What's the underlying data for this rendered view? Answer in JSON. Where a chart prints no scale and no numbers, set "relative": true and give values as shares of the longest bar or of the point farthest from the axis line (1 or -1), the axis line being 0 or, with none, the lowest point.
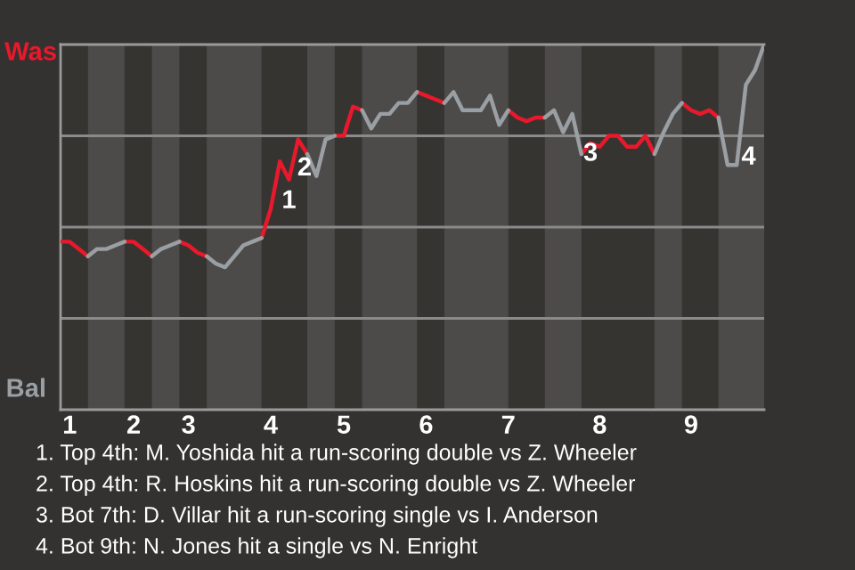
{
  "chart_data": {
    "type": "line",
    "relative": true,
    "categories": [
      null,
      "1",
      null,
      null,
      null,
      null,
      null,
      null,
      "2",
      null,
      null,
      null,
      null,
      null,
      "3",
      null,
      null,
      null,
      null,
      null,
      null,
      null,
      null,
      "4",
      null,
      null,
      null,
      null,
      null,
      null,
      null,
      "5",
      null,
      null,
      null,
      null,
      null,
      null,
      null,
      null,
      "6",
      null,
      null,
      null,
      null,
      null,
      null,
      null,
      null,
      "7",
      null,
      null,
      null,
      null,
      null,
      null,
      null,
      null,
      null,
      "8",
      null,
      null,
      null,
      null,
      null,
      null,
      null,
      null,
      null,
      "9",
      null,
      null,
      null,
      null,
      null,
      null,
      null,
      null
    ],
    "marker": "none",
    "line_style": "solid",
    "series": [
      {
        "color": "#e8192c",
        "values": [
          0.46,
          0.46,
          0.44,
          0.42,
          null,
          null,
          null,
          0.46,
          0.46,
          0.44,
          0.42,
          null,
          null,
          0.46,
          0.45,
          0.43,
          0.42,
          null,
          null,
          null,
          null,
          null,
          0.47,
          0.55,
          0.68,
          0.63,
          0.74,
          0.7,
          null,
          null,
          0.75,
          0.75,
          0.83,
          0.82,
          null,
          null,
          null,
          null,
          null,
          0.87,
          0.86,
          0.85,
          0.84,
          null,
          null,
          null,
          null,
          null,
          null,
          0.82,
          0.8,
          0.79,
          0.8,
          0.8,
          null,
          null,
          null,
          0.7,
          0.73,
          0.72,
          0.75,
          0.75,
          0.72,
          0.72,
          0.75,
          0.7,
          null,
          null,
          0.84,
          0.82,
          0.81,
          0.82,
          0.8,
          null,
          null,
          null,
          null,
          null
        ]
      },
      {
        "color": "#9a9fa3",
        "values": [
          null,
          null,
          null,
          0.42,
          0.44,
          0.44,
          0.45,
          0.46,
          null,
          null,
          0.42,
          0.44,
          0.45,
          0.46,
          null,
          null,
          0.42,
          0.4,
          0.39,
          0.42,
          0.45,
          0.46,
          0.47,
          null,
          null,
          null,
          null,
          0.7,
          0.64,
          0.74,
          0.75,
          null,
          null,
          0.82,
          0.77,
          0.81,
          0.81,
          0.84,
          0.84,
          0.87,
          null,
          null,
          0.84,
          0.87,
          0.82,
          0.82,
          0.82,
          0.86,
          0.78,
          0.82,
          null,
          null,
          null,
          0.8,
          0.82,
          0.76,
          0.81,
          0.7,
          null,
          null,
          null,
          null,
          null,
          null,
          null,
          0.7,
          0.76,
          0.81,
          0.84,
          null,
          null,
          null,
          0.8,
          0.67,
          0.67,
          0.89,
          0.93,
          1.0
        ]
      }
    ],
    "ref_lines": [
      {
        "axis": "y",
        "value": 0.25,
        "color": "#8a8a8a"
      },
      {
        "axis": "y",
        "value": 0.5,
        "color": "#8a8a8a"
      },
      {
        "axis": "y",
        "value": 0.75,
        "color": "#8a8a8a"
      }
    ],
    "annotations": [
      "Was",
      "Bal",
      "1",
      "2",
      "3",
      "4",
      "1. Top 4th: M. Yoshida hit a run-scoring double vs Z. Wheeler",
      "2. Top 4th: R. Hoskins hit a run-scoring double vs Z. Wheeler",
      "3. Bot 7th: D. Villar hit a run-scoring single vs I. Anderson",
      "4. Bot 9th: N. Jones hit a single vs N. Enright"
    ]
  }
}
